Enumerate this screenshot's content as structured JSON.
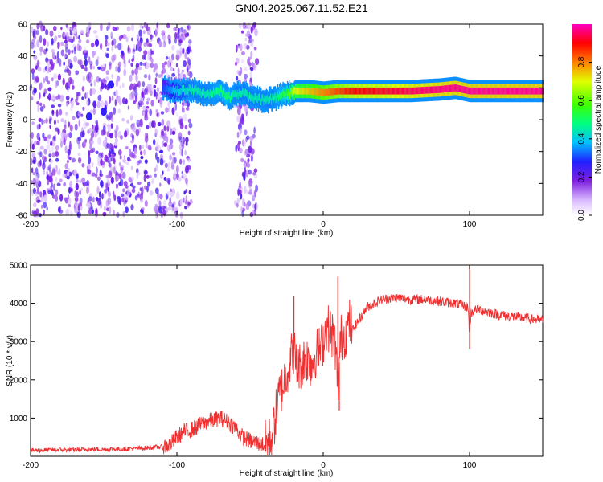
{
  "title": "GN04.2025.067.11.52.E21",
  "chart_data": [
    {
      "type": "heatmap",
      "xlabel": "Height of straight line (km)",
      "ylabel": "Frequency (Hz)",
      "xlim": [
        -200,
        150
      ],
      "ylim": [
        -60,
        60
      ],
      "x_ticks": [
        "-200",
        "-100",
        "0",
        "100"
      ],
      "y_ticks": [
        "60",
        "40",
        "20",
        "0",
        "-20",
        "-40",
        "-60"
      ],
      "colorbar": {
        "label": "Normalized spectral amplitude",
        "range": [
          0,
          1
        ],
        "ticks": [
          "0.0",
          "0.2",
          "0.4",
          "0.6",
          "0.8"
        ]
      },
      "ridge": {
        "x": [
          -160,
          -150,
          -145,
          -110,
          -100,
          -90,
          -80,
          -70,
          -65,
          -60,
          -55,
          -50,
          -45,
          -40,
          -35,
          -30,
          -25,
          -20,
          -10,
          0,
          10,
          20,
          40,
          60,
          80,
          90,
          100,
          120,
          150
        ],
        "frequency": [
          2,
          5,
          22,
          20,
          18,
          19,
          16,
          18,
          14,
          16,
          17,
          14,
          13,
          12,
          13,
          15,
          16,
          18,
          18,
          17,
          18,
          18,
          18,
          18,
          19,
          20,
          18,
          18,
          18
        ],
        "amplitude": [
          0.2,
          0.15,
          0.3,
          0.3,
          0.4,
          0.45,
          0.45,
          0.5,
          0.5,
          0.45,
          0.45,
          0.45,
          0.45,
          0.45,
          0.45,
          0.5,
          0.55,
          0.7,
          0.75,
          0.8,
          0.85,
          0.9,
          0.92,
          0.95,
          0.97,
          0.97,
          0.98,
          0.98,
          0.98
        ]
      },
      "grid": false
    },
    {
      "type": "line",
      "xlabel": "Height of straight line (km)",
      "ylabel": "SNR (10 * v/v)",
      "xlim": [
        -200,
        150
      ],
      "ylim": [
        0,
        5000
      ],
      "x_ticks": [
        "-200",
        "-100",
        "0",
        "100"
      ],
      "y_ticks": [
        "5000",
        "4000",
        "3000",
        "2000",
        "1000"
      ],
      "series": [
        {
          "color": "#f03030",
          "x": [
            -200,
            -190,
            -180,
            -170,
            -160,
            -150,
            -140,
            -130,
            -120,
            -110,
            -105,
            -100,
            -95,
            -90,
            -85,
            -80,
            -75,
            -70,
            -65,
            -60,
            -55,
            -50,
            -45,
            -40,
            -38,
            -35,
            -32,
            -30,
            -28,
            -25,
            -22,
            -20,
            -18,
            -15,
            -12,
            -10,
            -8,
            -5,
            -2,
            0,
            2,
            5,
            8,
            10,
            12,
            15,
            18,
            20,
            25,
            30,
            40,
            50,
            60,
            70,
            80,
            90,
            95,
            99,
            100,
            101,
            105,
            110,
            120,
            130,
            140,
            150
          ],
          "y": [
            150,
            160,
            170,
            170,
            180,
            180,
            190,
            200,
            220,
            250,
            300,
            500,
            650,
            700,
            800,
            900,
            950,
            1000,
            900,
            750,
            500,
            400,
            350,
            300,
            350,
            500,
            1200,
            1600,
            1800,
            2200,
            2600,
            2800,
            2300,
            2400,
            2600,
            2500,
            2400,
            2700,
            2800,
            3000,
            3400,
            3300,
            3000,
            1800,
            3100,
            3200,
            3500,
            3300,
            3600,
            3900,
            4100,
            4150,
            4100,
            4100,
            4050,
            4000,
            3950,
            3900,
            3200,
            3750,
            3850,
            3800,
            3700,
            3650,
            3600,
            3550
          ]
        }
      ],
      "spikes": [
        {
          "x": 10,
          "y": 4700
        },
        {
          "x": 100,
          "y": 5000
        },
        {
          "x": 100,
          "y": 2800
        },
        {
          "x": -20,
          "y": 4200
        },
        {
          "x": 11,
          "y": 1200
        }
      ],
      "grid": false
    }
  ]
}
